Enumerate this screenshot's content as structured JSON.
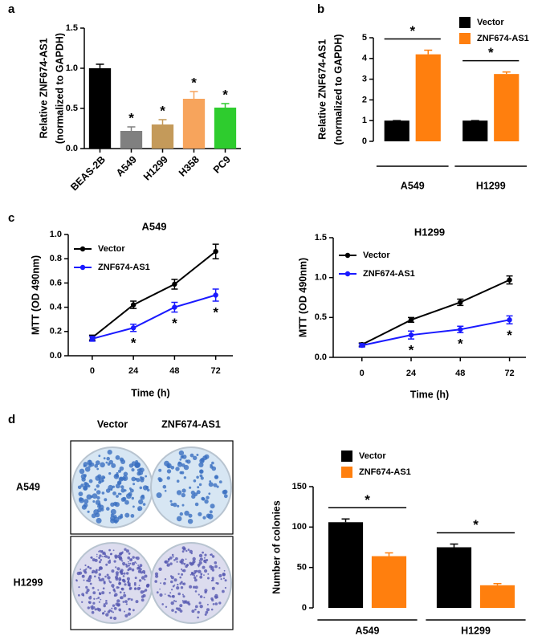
{
  "chart_data": [
    {
      "type": "bar",
      "label": "a",
      "categories": [
        "BEAS-2B",
        "A549",
        "H1299",
        "H358",
        "PC9"
      ],
      "values": [
        1.0,
        0.22,
        0.3,
        0.62,
        0.51
      ],
      "errors": [
        0.05,
        0.05,
        0.06,
        0.09,
        0.05
      ],
      "colors": [
        "#000000",
        "#808080",
        "#c49a5a",
        "#f7a45c",
        "#2ecc2e"
      ],
      "annotations": [
        null,
        "*",
        "*",
        "*",
        "*"
      ],
      "ylabel": [
        "Relative ZNF674-AS1",
        "(normalized to GAPDH)"
      ],
      "ylim": [
        0,
        1.5
      ],
      "yticks": [
        {
          "value": 0,
          "label": "0.0"
        },
        0.5,
        {
          "value": 1,
          "label": "1.0"
        },
        1.5
      ]
    },
    {
      "type": "grouped_bar",
      "label": "b",
      "categories": [
        "A549",
        "H1299"
      ],
      "series": [
        {
          "name": "Vector",
          "color": "#000000",
          "values": [
            1,
            1
          ],
          "errors": [
            0,
            0
          ]
        },
        {
          "name": "ZNF674-AS1",
          "color": "#ff7f0e",
          "values": [
            4.2,
            3.25
          ],
          "errors": [
            0.2,
            0.1
          ]
        }
      ],
      "annotations": [
        "*",
        "*"
      ],
      "ylabel": [
        "Relative ZNF674-AS1",
        "(normalized to GAPDH)"
      ],
      "ylim": [
        0,
        5
      ],
      "yticks": [
        0,
        1,
        2,
        3,
        4,
        5
      ]
    },
    {
      "type": "line",
      "label": "c",
      "title": "A549",
      "x": [
        0,
        24,
        48,
        72
      ],
      "xlim": [
        -14,
        82
      ],
      "xticks": [
        0,
        24,
        48,
        72
      ],
      "xlabel": "Time (h)",
      "series": [
        {
          "name": "Vector",
          "color": "#000000",
          "values": [
            0.15,
            0.42,
            0.59,
            0.86
          ],
          "errors": [
            0.02,
            0.03,
            0.04,
            0.06
          ]
        },
        {
          "name": "ZNF674-AS1",
          "color": "#1a1aff",
          "values": [
            0.14,
            0.23,
            0.4,
            0.5
          ],
          "errors": [
            0.02,
            0.03,
            0.04,
            0.05
          ]
        }
      ],
      "annotations": [
        null,
        "*",
        "*",
        "*"
      ],
      "ylabel": [
        "MTT (OD 490nm)"
      ],
      "ylim": [
        0,
        1
      ],
      "yticks": [
        {
          "value": 0,
          "label": "0.0"
        },
        0.2,
        0.4,
        0.6,
        0.8,
        {
          "value": 1,
          "label": "1.0"
        }
      ]
    },
    {
      "type": "line",
      "title": "H1299",
      "x": [
        0,
        24,
        48,
        72
      ],
      "xlim": [
        -14,
        80
      ],
      "xticks": [
        0,
        24,
        48,
        72
      ],
      "xlabel": "Time (h)",
      "series": [
        {
          "name": "Vector",
          "color": "#000000",
          "values": [
            0.16,
            0.47,
            0.69,
            0.97
          ],
          "errors": [
            0.02,
            0.03,
            0.04,
            0.05
          ]
        },
        {
          "name": "ZNF674-AS1",
          "color": "#1a1aff",
          "values": [
            0.15,
            0.28,
            0.35,
            0.47
          ],
          "errors": [
            0.02,
            0.05,
            0.04,
            0.05
          ]
        }
      ],
      "annotations": [
        null,
        "*",
        "*",
        "*"
      ],
      "ylabel": [
        "MTT (OD 490nm)"
      ],
      "ylim": [
        0,
        1.5
      ],
      "yticks": [
        {
          "value": 0,
          "label": "0.0"
        },
        0.5,
        {
          "value": 1,
          "label": "1.0"
        },
        1.5
      ]
    },
    {
      "type": "grouped_bar",
      "label": "d",
      "image_columns": [
        "Vector",
        "ZNF674-AS1"
      ],
      "image_rows": [
        "A549",
        "H1299"
      ],
      "categories": [
        "A549",
        "H1299"
      ],
      "series": [
        {
          "name": "Vector",
          "color": "#000000",
          "values": [
            106,
            75
          ],
          "errors": [
            4,
            4
          ]
        },
        {
          "name": "ZNF674-AS1",
          "color": "#ff7f0e",
          "values": [
            64,
            28
          ],
          "errors": [
            4,
            2
          ]
        }
      ],
      "annotations": [
        "*",
        "*"
      ],
      "ylabel": [
        "Number of colonies"
      ],
      "ylim": [
        0,
        150
      ],
      "yticks": [
        0,
        50,
        100,
        150
      ]
    }
  ]
}
